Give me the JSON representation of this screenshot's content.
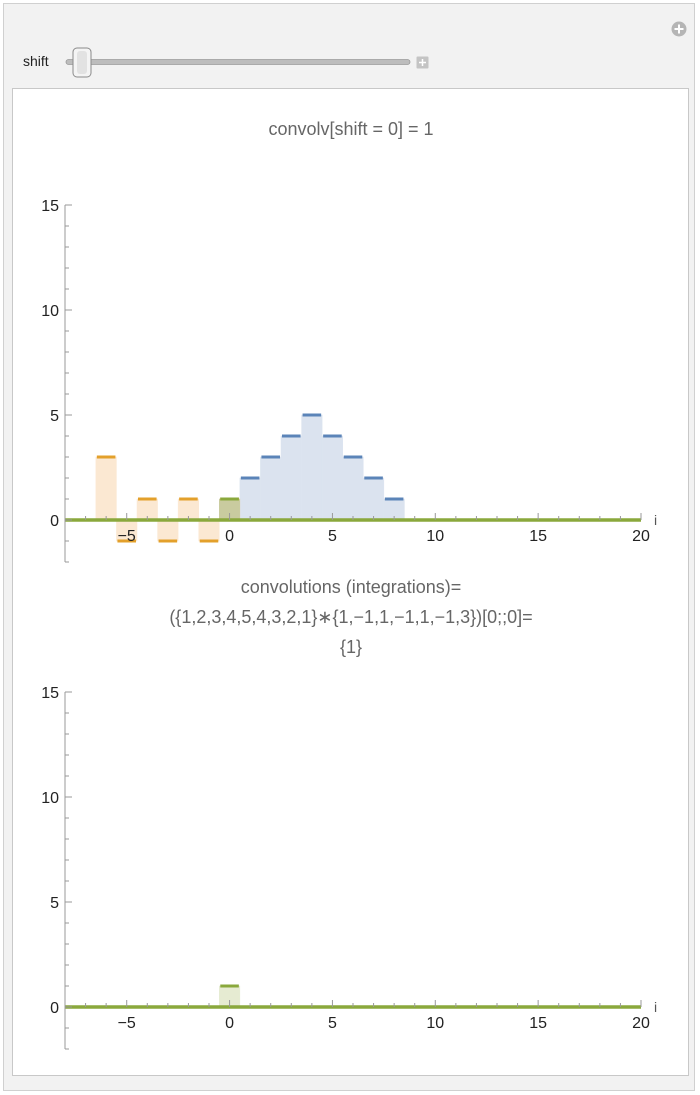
{
  "controls": {
    "slider_label": "shift",
    "shift_value": 0,
    "shift_min": 0,
    "shift_max": 20,
    "add_icon": "add-circle-icon",
    "stepper_icon": "plus-square-icon"
  },
  "chart_data": [
    {
      "type": "bar",
      "title": "convolv[shift = 0] = 1",
      "xlabel": "i",
      "ylabel": "",
      "xlim": [
        -8,
        20
      ],
      "ylim": [
        -2,
        15
      ],
      "xticks": [
        -5,
        0,
        5,
        10,
        15,
        20
      ],
      "yticks": [
        0,
        5,
        10,
        15
      ],
      "grid": false,
      "series": [
        {
          "color": "#5b84b8",
          "fill": "#dbe3ef",
          "x": [
            1,
            2,
            3,
            4,
            5,
            6,
            7,
            8,
            9
          ],
          "values": [
            2,
            3,
            4,
            5,
            4,
            3,
            2,
            1,
            0
          ]
        },
        {
          "color": "#e3a02b",
          "fill": "#fbe8d2",
          "x": [
            -6,
            -5,
            -4,
            -3,
            -2,
            -1,
            0
          ],
          "values": [
            3,
            -1,
            1,
            -1,
            1,
            -1,
            1
          ]
        },
        {
          "color": "#8aa83c",
          "fill": "#c9cb9f",
          "x": [
            0
          ],
          "values": [
            1
          ]
        }
      ]
    },
    {
      "type": "bar",
      "title": [
        "convolutions (integrations)=",
        "({1,2,3,4,5,4,3,2,1}∗{1,−1,1,−1,1,−1,3})[0;;0]=",
        "{1}"
      ],
      "xlabel": "i",
      "ylabel": "",
      "xlim": [
        -8,
        20
      ],
      "ylim": [
        -2,
        15
      ],
      "xticks": [
        -5,
        0,
        5,
        10,
        15,
        20
      ],
      "yticks": [
        0,
        5,
        10,
        15
      ],
      "grid": false,
      "series": [
        {
          "color": "#8aa83c",
          "fill": "#e6ebd2",
          "x": [
            0
          ],
          "values": [
            1
          ]
        }
      ]
    }
  ]
}
